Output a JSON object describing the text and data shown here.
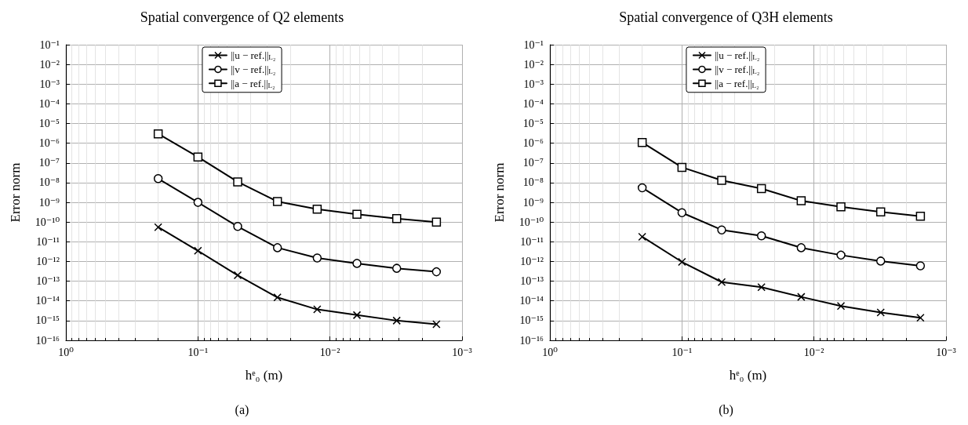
{
  "chart_data": [
    {
      "type": "line",
      "title": "Spatial convergence of Q2 elements",
      "xlabel": "hᵉ₀ (m)",
      "ylabel": "Error norm",
      "annotations": [
        "(a)"
      ],
      "x": [
        0.2,
        0.1,
        0.05,
        0.025,
        0.0125,
        0.00625,
        0.003125,
        0.0015625
      ],
      "series": [
        {
          "name": "||u − ref.||$_{L₂}$",
          "color": "#000000",
          "marker": "cross",
          "values": [
            5.5e-11,
            3.5e-12,
            2e-13,
            1.5e-14,
            3.7e-15,
            1.9e-15,
            1e-15,
            6.5e-16
          ]
        },
        {
          "name": "||v − ref.||$_{L₂}$",
          "color": "#000000",
          "marker": "circle",
          "values": [
            1.6e-08,
            1e-09,
            6e-11,
            5e-12,
            1.5e-12,
            8e-13,
            4.5e-13,
            3e-13
          ]
        },
        {
          "name": "||a − ref.||$_{L₂}$",
          "color": "#000000",
          "marker": "square",
          "values": [
            3e-06,
            2e-07,
            1.1e-08,
            1.1e-09,
            4.5e-10,
            2.5e-10,
            1.5e-10,
            1e-10
          ]
        }
      ],
      "log": "xy",
      "grid": true,
      "legend": "top",
      "line_style": "solid",
      "xlim": [
        1,
        0.001
      ],
      "xticks": [
        {
          "value": 1,
          "label": "10⁰"
        },
        {
          "value": 0.1,
          "label": "10⁻¹"
        },
        {
          "value": 0.01,
          "label": "10⁻²"
        },
        {
          "value": 0.001,
          "label": "10⁻³"
        }
      ],
      "ylim": [
        1e-16,
        0.1
      ],
      "yticks": [
        {
          "value": 1e-16,
          "label": "10⁻¹⁶"
        },
        {
          "value": 1e-15,
          "label": "10⁻¹⁵"
        },
        {
          "value": 1e-14,
          "label": "10⁻¹⁴"
        },
        {
          "value": 1e-13,
          "label": "10⁻¹³"
        },
        {
          "value": 1e-12,
          "label": "10⁻¹²"
        },
        {
          "value": 1e-11,
          "label": "10⁻¹¹"
        },
        {
          "value": 1e-10,
          "label": "10⁻¹⁰"
        },
        {
          "value": 1e-09,
          "label": "10⁻⁹"
        },
        {
          "value": 1e-08,
          "label": "10⁻⁸"
        },
        {
          "value": 1e-07,
          "label": "10⁻⁷"
        },
        {
          "value": 1e-06,
          "label": "10⁻⁶"
        },
        {
          "value": 1e-05,
          "label": "10⁻⁵"
        },
        {
          "value": 0.0001,
          "label": "10⁻⁴"
        },
        {
          "value": 0.001,
          "label": "10⁻³"
        },
        {
          "value": 0.01,
          "label": "10⁻²"
        },
        {
          "value": 0.1,
          "label": "10⁻¹"
        }
      ]
    },
    {
      "type": "line",
      "title": "Spatial convergence of Q3H elements",
      "xlabel": "hᵉ₀ (m)",
      "ylabel": "Error norm",
      "annotations": [
        "(b)"
      ],
      "x": [
        0.2,
        0.1,
        0.05,
        0.025,
        0.0125,
        0.00625,
        0.003125,
        0.0015625
      ],
      "series": [
        {
          "name": "||u − ref.||$_{L₂}$",
          "color": "#000000",
          "marker": "cross",
          "values": [
            1.8e-11,
            9.5e-13,
            9e-14,
            5e-14,
            1.6e-14,
            5.5e-15,
            2.6e-15,
            1.4e-15
          ]
        },
        {
          "name": "||v − ref.||$_{L₂}$",
          "color": "#000000",
          "marker": "circle",
          "values": [
            5.5e-09,
            3e-10,
            4e-11,
            2e-11,
            5e-12,
            2.1e-12,
            1.05e-12,
            6e-13
          ]
        },
        {
          "name": "||a − ref.||$_{L₂}$",
          "color": "#000000",
          "marker": "square",
          "values": [
            1.1e-06,
            6e-08,
            1.3e-08,
            5e-09,
            1.2e-09,
            6e-10,
            3.3e-10,
            2e-10
          ]
        }
      ],
      "log": "xy",
      "grid": true,
      "legend": "top",
      "line_style": "solid",
      "xlim": [
        1,
        0.001
      ],
      "xticks": [
        {
          "value": 1,
          "label": "10⁰"
        },
        {
          "value": 0.1,
          "label": "10⁻¹"
        },
        {
          "value": 0.01,
          "label": "10⁻²"
        },
        {
          "value": 0.001,
          "label": "10⁻³"
        }
      ],
      "ylim": [
        1e-16,
        0.1
      ],
      "yticks": [
        {
          "value": 1e-16,
          "label": "10⁻¹⁶"
        },
        {
          "value": 1e-15,
          "label": "10⁻¹⁵"
        },
        {
          "value": 1e-14,
          "label": "10⁻¹⁴"
        },
        {
          "value": 1e-13,
          "label": "10⁻¹³"
        },
        {
          "value": 1e-12,
          "label": "10⁻¹²"
        },
        {
          "value": 1e-11,
          "label": "10⁻¹¹"
        },
        {
          "value": 1e-10,
          "label": "10⁻¹⁰"
        },
        {
          "value": 1e-09,
          "label": "10⁻⁹"
        },
        {
          "value": 1e-08,
          "label": "10⁻⁸"
        },
        {
          "value": 1e-07,
          "label": "10⁻⁷"
        },
        {
          "value": 1e-06,
          "label": "10⁻⁶"
        },
        {
          "value": 1e-05,
          "label": "10⁻⁵"
        },
        {
          "value": 0.0001,
          "label": "10⁻⁴"
        },
        {
          "value": 0.001,
          "label": "10⁻³"
        },
        {
          "value": 0.01,
          "label": "10⁻²"
        },
        {
          "value": 0.1,
          "label": "10⁻¹"
        }
      ]
    }
  ]
}
